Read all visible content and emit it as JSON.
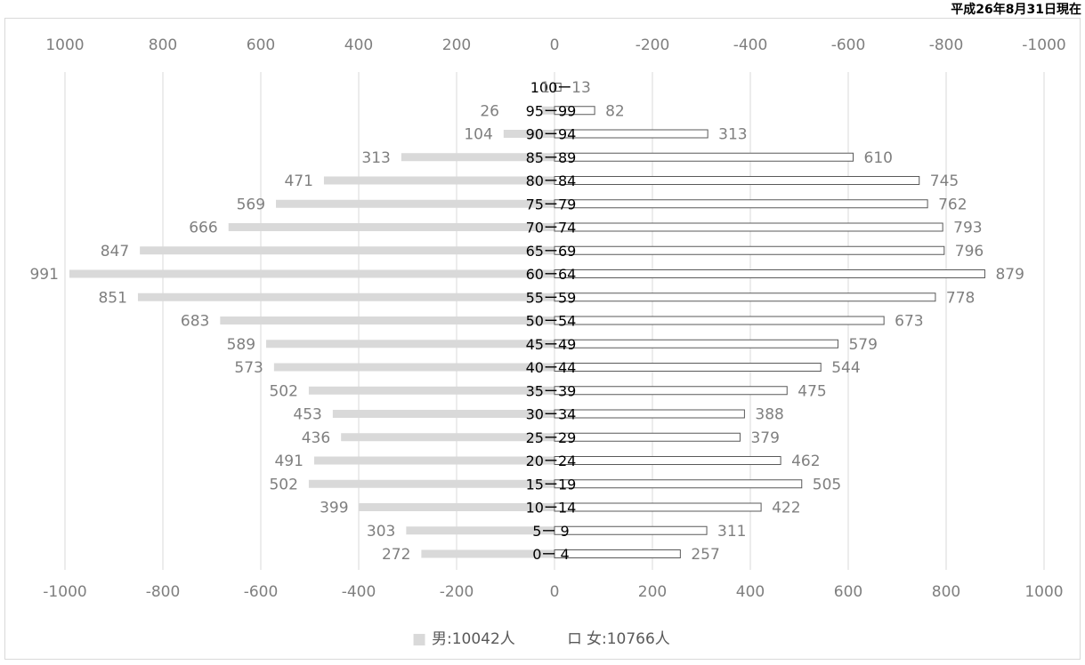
{
  "date_note": "平成26年8月31日現在",
  "chart_data": {
    "type": "bar",
    "orientation": "horizontal",
    "subtype": "population-pyramid",
    "categories": [
      "100ー",
      "95ー99",
      "90ー94",
      "85ー89",
      "80ー84",
      "75ー79",
      "70ー74",
      "65ー69",
      "60ー64",
      "55ー59",
      "50ー54",
      "45ー49",
      "40ー44",
      "35ー39",
      "30ー34",
      "25ー29",
      "20ー24",
      "15ー19",
      "10ー14",
      "5ー 9",
      "0ー 4"
    ],
    "series": [
      {
        "name": "男",
        "values": [
          1,
          26,
          104,
          313,
          471,
          569,
          666,
          847,
          991,
          851,
          683,
          589,
          573,
          502,
          453,
          436,
          491,
          502,
          399,
          303,
          272
        ],
        "color": "#d9d9d9"
      },
      {
        "name": "女",
        "values": [
          13,
          82,
          313,
          610,
          745,
          762,
          793,
          796,
          879,
          778,
          673,
          579,
          544,
          475,
          388,
          379,
          462,
          505,
          422,
          311,
          257
        ],
        "color": "#ffffff",
        "stroke": "#595959"
      }
    ],
    "top_axis_ticks": [
      "1000",
      "800",
      "600",
      "400",
      "200",
      "0",
      "-200",
      "-400",
      "-600",
      "-800",
      "-1000"
    ],
    "bottom_axis_ticks": [
      "-1000",
      "-800",
      "-600",
      "-400",
      "-200",
      "0",
      "200",
      "400",
      "600",
      "800",
      "1000"
    ],
    "xlim": [
      -1000,
      1000
    ],
    "grid": true,
    "legend": {
      "position": "bottom",
      "entries": [
        {
          "marker": "■",
          "label": "男:10042人"
        },
        {
          "marker": "ロ",
          "label": "女:10766人"
        }
      ]
    }
  }
}
